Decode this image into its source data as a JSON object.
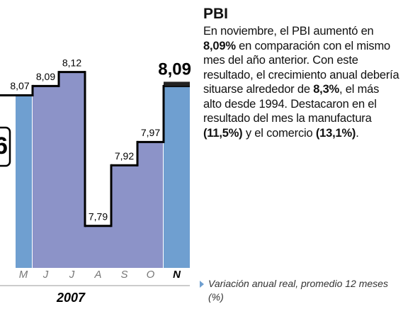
{
  "chart_data": {
    "type": "step-bar",
    "title": "PBI",
    "paragraph": [
      {
        "text": "En noviembre, el PBI aumentó en ",
        "bold": false
      },
      {
        "text": "8,09%",
        "bold": true
      },
      {
        "text": " en comparación con el mismo mes del año anterior. Con este resultado, el crecimiento anual debería situarse alrededor de ",
        "bold": false
      },
      {
        "text": "8,3%",
        "bold": true
      },
      {
        "text": ", el más alto desde 1994. Destacaron en el resultado del mes la manufactura ",
        "bold": false
      },
      {
        "text": "(11,5%)",
        "bold": true
      },
      {
        "text": " y el comercio ",
        "bold": false
      },
      {
        "text": "(13,1%)",
        "bold": true
      },
      {
        "text": ".",
        "bold": false
      }
    ],
    "note": "Variación anual real, promedio 12 meses (%)",
    "year": "2007",
    "side_label": "6",
    "categories": [
      "M",
      "J",
      "J",
      "A",
      "S",
      "O",
      "N"
    ],
    "values": [
      8.07,
      8.09,
      8.12,
      7.79,
      7.92,
      7.97,
      8.09
    ],
    "value_labels": [
      "8,07",
      "8,09",
      "8,12",
      "7,79",
      "7,92",
      "7,97",
      "8,09"
    ],
    "highlight_index": 6,
    "colors": {
      "edge": "#6f9fd0",
      "middle": "#8c93c8"
    },
    "ylim": [
      7.7,
      8.2
    ]
  }
}
